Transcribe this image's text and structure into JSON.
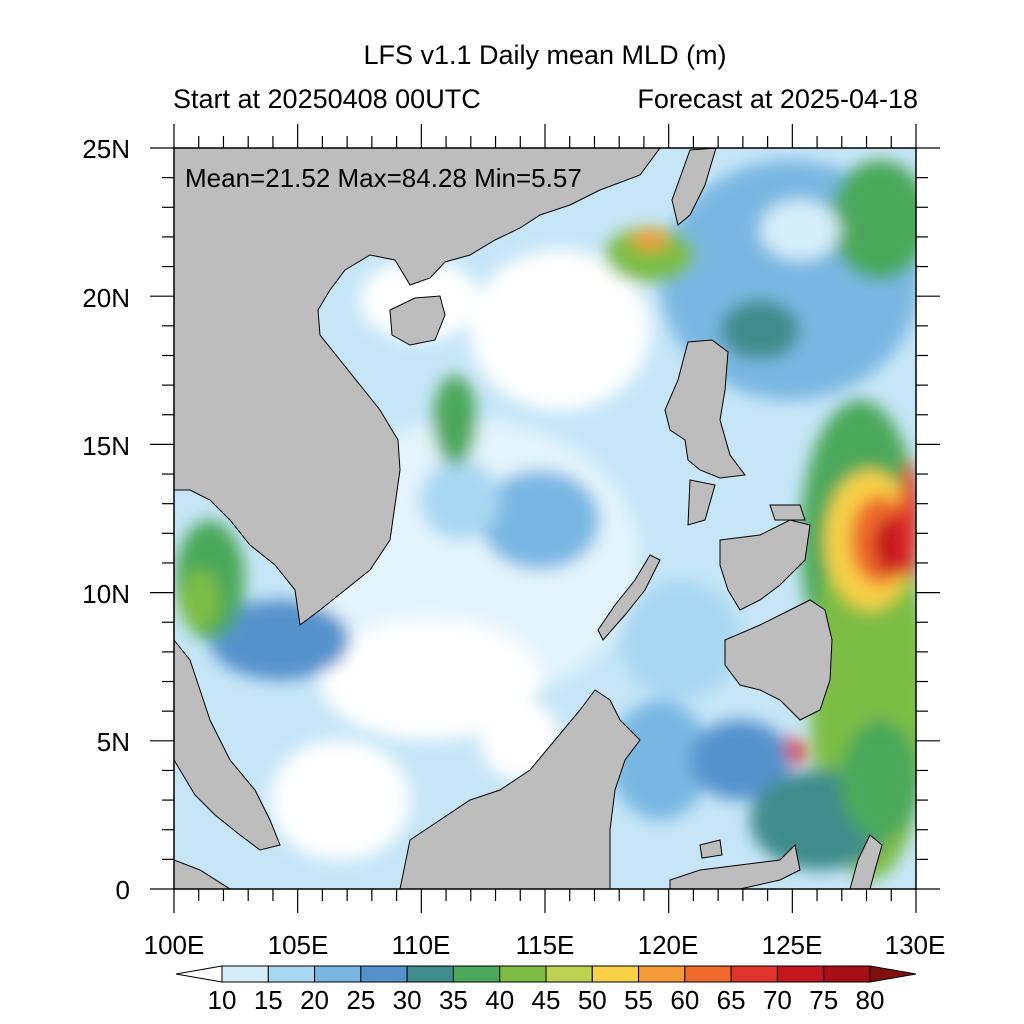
{
  "titles": {
    "main": "LFS v1.1 Daily mean MLD (m)",
    "start": "Start at 20250408 00UTC",
    "forecast": "Forecast at 2025-04-18"
  },
  "stats": "Mean=21.52  Max=84.28  Min=5.57",
  "axes": {
    "lon_labels": [
      "100E",
      "105E",
      "110E",
      "115E",
      "120E",
      "125E",
      "130E"
    ],
    "lat_labels": [
      "25N",
      "20N",
      "15N",
      "10N",
      "5N",
      "0"
    ],
    "lon_range": [
      100,
      130
    ],
    "lat_range": [
      0,
      25
    ]
  },
  "colorbar": {
    "labels": [
      "10",
      "15",
      "20",
      "25",
      "30",
      "35",
      "40",
      "45",
      "50",
      "55",
      "60",
      "65",
      "70",
      "75",
      "80"
    ],
    "colors": [
      "#ffffff",
      "#d6eefa",
      "#a8d7f2",
      "#79b7e2",
      "#5592cc",
      "#3f8c8c",
      "#4ba85a",
      "#7dbd45",
      "#bcd250",
      "#f8d146",
      "#f59b3a",
      "#ef6a2c",
      "#e0332b",
      "#c4161f",
      "#a50f15",
      "#801010"
    ]
  },
  "colors": {
    "land": "#bdbdbd",
    "water_low": "#ffffff"
  }
}
